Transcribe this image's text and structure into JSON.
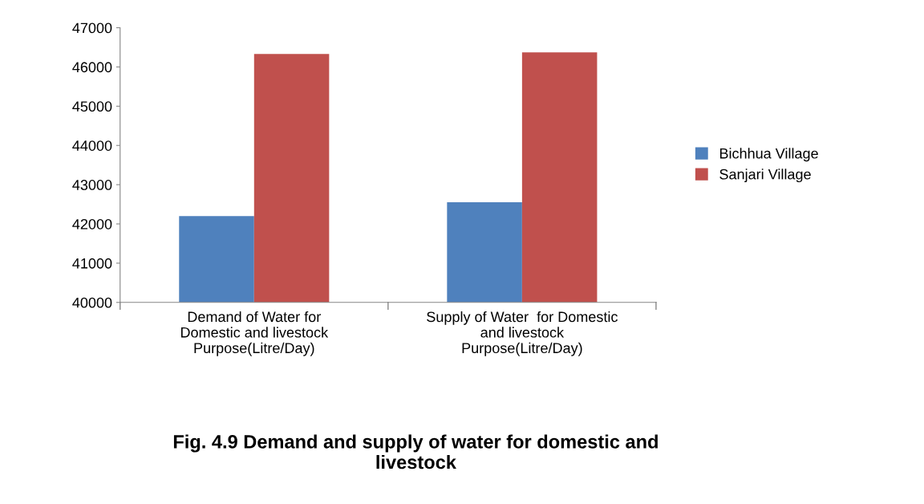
{
  "chart_data": {
    "type": "bar",
    "title": "Fig. 4.9 Demand and supply of water for domestic and\nlivestock",
    "categories": [
      "Demand of Water for\nDomestic and livestock\nPurpose(Litre/Day)",
      "Supply of Water  for Domestic\nand livestock\nPurpose(Litre/Day)"
    ],
    "series": [
      {
        "name": "Bichhua Village",
        "color": "#4f81bd",
        "values": [
          42200,
          42550
        ]
      },
      {
        "name": "Sanjari Village",
        "color": "#c0504d",
        "values": [
          46330,
          46370
        ]
      }
    ],
    "ylim": [
      40000,
      47000
    ],
    "yticks": [
      40000,
      41000,
      42000,
      43000,
      44000,
      45000,
      46000,
      47000
    ],
    "grid": false,
    "legend": "right"
  }
}
